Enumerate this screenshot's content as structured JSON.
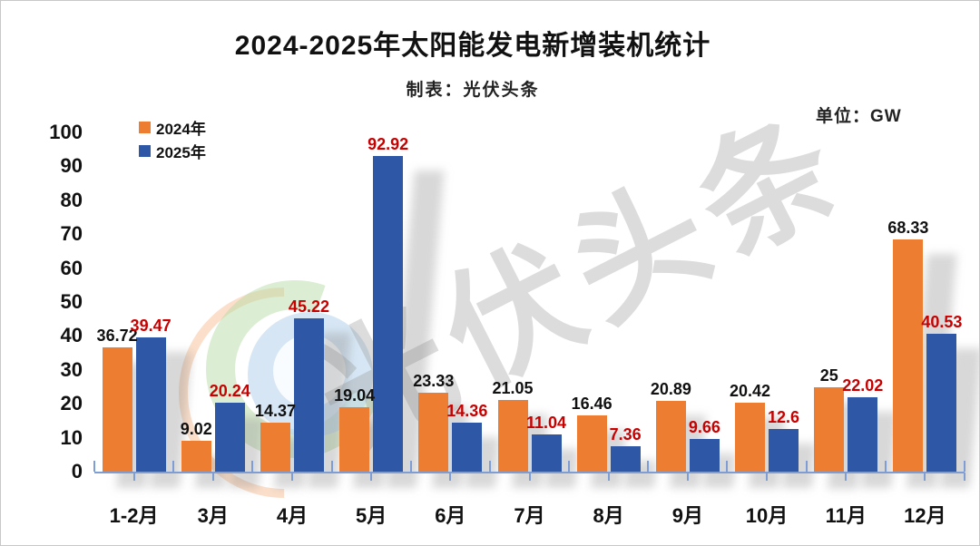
{
  "header": {
    "title": "2024-2025年太阳能发电新增装机统计",
    "subtitle": "制表：光伏头条",
    "unit_label": "单位：GW"
  },
  "legend": {
    "items": [
      {
        "label": "2024年",
        "color": "#ED7D31"
      },
      {
        "label": "2025年",
        "color": "#2E57A6"
      }
    ]
  },
  "watermark": {
    "text": "光伏头条"
  },
  "chart_data": {
    "type": "bar",
    "title": "2024-2025年太阳能发电新增装机统计",
    "subtitle": "制表：光伏头条",
    "unit": "GW",
    "categories": [
      "1-2月",
      "3月",
      "4月",
      "5月",
      "6月",
      "7月",
      "8月",
      "9月",
      "10月",
      "11月",
      "12月"
    ],
    "series": [
      {
        "name": "2024年",
        "color": "#ED7D31",
        "label_color": "#111111",
        "values": [
          36.72,
          9.02,
          14.37,
          19.04,
          23.33,
          21.05,
          16.46,
          20.89,
          20.42,
          25,
          68.33
        ],
        "labels": [
          "36.72",
          "9.02",
          "14.37",
          "19.04",
          "23.33",
          "21.05",
          "16.46",
          "20.89",
          "20.42",
          "25",
          "68.33"
        ]
      },
      {
        "name": "2025年",
        "color": "#2E57A6",
        "label_color": "#C80000",
        "values": [
          39.47,
          20.24,
          45.22,
          92.92,
          14.36,
          11.04,
          7.36,
          9.66,
          12.6,
          22.02,
          40.53
        ],
        "labels": [
          "39.47",
          "20.24",
          "45.22",
          "92.92",
          "14.36",
          "11.04",
          "7.36",
          "9.66",
          "12.6",
          "22.02",
          "40.53"
        ]
      }
    ],
    "y_ticks": [
      0,
      10,
      20,
      30,
      40,
      50,
      60,
      70,
      80,
      90,
      100
    ],
    "ylim": [
      0,
      100
    ],
    "grid": false,
    "legend_position": "top-left",
    "axis_color": "#7E9DD4"
  }
}
